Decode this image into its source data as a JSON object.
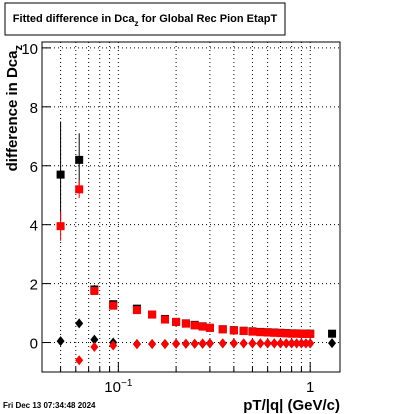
{
  "chart_data": {
    "type": "scatter",
    "title": [
      "Fitted difference in Dca",
      "z",
      " for Global Rec Pion EtapT"
    ],
    "ylabel": [
      "difference in Dca",
      "z"
    ],
    "xlabel": "pT/|q| (GeV/c)",
    "footer": "Fri Dec 13 07:34:48 2024",
    "xscale": "log",
    "xlim": [
      0.04,
      1.43
    ],
    "ylim": [
      -1,
      10.2
    ],
    "xticks": [
      {
        "value": 0.1,
        "label": "10",
        "sup": "−1"
      },
      1
    ],
    "xminorticks": [
      0.05,
      0.06,
      0.07,
      0.08,
      0.09,
      0.2,
      0.3,
      0.4,
      0.5,
      0.6,
      0.7,
      0.8,
      0.9
    ],
    "yticks": [
      0,
      2,
      4,
      6,
      8,
      10
    ],
    "grid": true,
    "x": [
      0.05,
      0.0625,
      0.075,
      0.094,
      0.125,
      0.15,
      0.175,
      0.2,
      0.225,
      0.25,
      0.275,
      0.3,
      0.35,
      0.4,
      0.45,
      0.5,
      0.55,
      0.6,
      0.65,
      0.7,
      0.75,
      0.8,
      0.85,
      0.9,
      0.95,
      1.0,
      1.3
    ],
    "series": [
      {
        "marker": "square",
        "color": "#000000",
        "values": [
          5.7,
          6.2,
          1.8,
          1.3,
          1.15,
          0.95,
          0.8,
          0.7,
          0.65,
          0.6,
          0.55,
          0.5,
          0.45,
          0.42,
          0.4,
          0.38,
          0.36,
          0.35,
          0.34,
          0.33,
          0.32,
          0.31,
          0.31,
          0.3,
          0.3,
          0.3,
          0.3
        ],
        "errors": [
          1.8,
          0.9,
          0.15,
          0.1,
          0.08,
          0.06,
          0.05,
          0.05,
          0.05,
          0.05,
          0.05,
          0.05,
          0.05,
          0.05,
          0.05,
          0.05,
          0.05,
          0.05,
          0.05,
          0.05,
          0.05,
          0.05,
          0.05,
          0.05,
          0.05,
          0.05,
          0.1
        ]
      },
      {
        "marker": "square",
        "color": "#ff0000",
        "values": [
          3.95,
          5.2,
          1.75,
          1.25,
          1.1,
          0.95,
          0.78,
          0.7,
          0.64,
          0.58,
          0.54,
          0.5,
          0.45,
          0.41,
          0.39,
          0.37,
          0.35,
          0.34,
          0.33,
          0.32,
          0.31,
          0.3,
          0.3,
          0.3,
          0.29,
          0.29,
          null
        ],
        "errors": [
          0.5,
          0.3,
          0.1,
          0.08,
          0.06,
          0.05,
          0.05,
          0.05,
          0.05,
          0.05,
          0.05,
          0.05,
          0.05,
          0.05,
          0.05,
          0.05,
          0.05,
          0.05,
          0.05,
          0.05,
          0.05,
          0.05,
          0.05,
          0.05,
          0.05,
          0.05,
          null
        ]
      },
      {
        "marker": "diamond",
        "color": "#000000",
        "values": [
          0.05,
          0.65,
          0.1,
          0.0,
          -0.05,
          -0.05,
          -0.05,
          -0.04,
          -0.04,
          -0.04,
          -0.04,
          -0.03,
          -0.03,
          -0.03,
          -0.03,
          -0.03,
          -0.03,
          -0.03,
          -0.03,
          -0.03,
          -0.03,
          -0.03,
          -0.03,
          -0.03,
          -0.03,
          -0.03,
          -0.02
        ]
      },
      {
        "marker": "diamond",
        "color": "#ff0000",
        "values": [
          null,
          -0.6,
          -0.15,
          -0.1,
          -0.06,
          -0.05,
          -0.05,
          -0.04,
          -0.04,
          -0.04,
          -0.03,
          -0.03,
          -0.03,
          -0.03,
          -0.03,
          -0.03,
          -0.03,
          -0.03,
          -0.03,
          -0.03,
          -0.03,
          -0.03,
          -0.03,
          -0.03,
          -0.03,
          -0.03,
          null
        ]
      }
    ]
  }
}
